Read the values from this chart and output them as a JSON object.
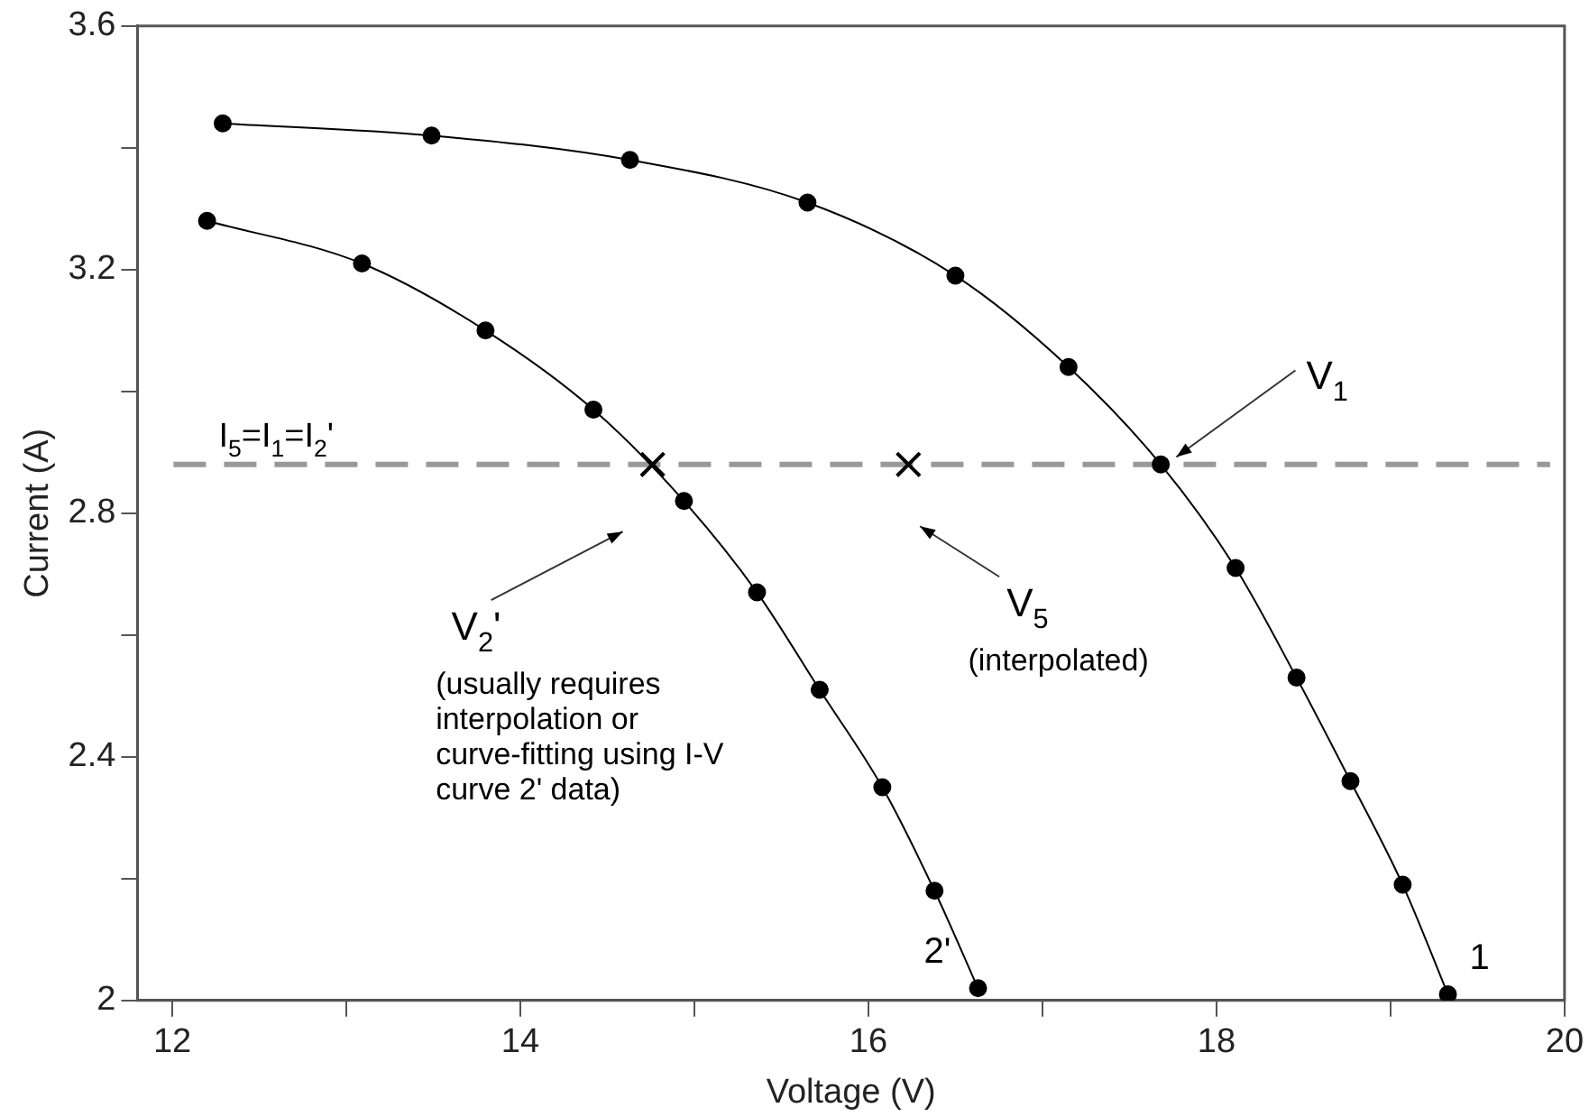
{
  "chart_data": {
    "type": "line",
    "xlabel": "Voltage (V)",
    "ylabel": "Current (A)",
    "xlim": [
      11.8,
      20
    ],
    "ylim": [
      2,
      3.6
    ],
    "xticks": [
      12,
      {
        "value": 13,
        "label": null
      },
      14,
      {
        "value": 15,
        "label": null
      },
      16,
      {
        "value": 17,
        "label": null
      },
      18,
      {
        "value": 19,
        "label": null
      },
      20
    ],
    "yticks": [
      2,
      {
        "value": 2.2,
        "label": null
      },
      2.4,
      {
        "value": 2.6,
        "label": null
      },
      2.8,
      {
        "value": 3.0,
        "label": null
      },
      3.2,
      {
        "value": 3.4,
        "label": null
      },
      3.6
    ],
    "marker": "circle",
    "series": [
      {
        "name": "1",
        "color": "#000000",
        "x": [
          12.29,
          13.49,
          14.63,
          15.65,
          16.5,
          17.15,
          17.68,
          18.11,
          18.46,
          18.77,
          19.07,
          19.33
        ],
        "values": [
          3.44,
          3.42,
          3.38,
          3.31,
          3.19,
          3.04,
          2.88,
          2.71,
          2.53,
          2.36,
          2.19,
          2.01
        ]
      },
      {
        "name": "2'",
        "color": "#000000",
        "x": [
          12.2,
          13.09,
          13.8,
          14.42,
          14.94,
          15.36,
          15.72,
          16.08,
          16.38,
          16.63
        ],
        "values": [
          3.28,
          3.21,
          3.1,
          2.97,
          2.82,
          2.67,
          2.51,
          2.35,
          2.18,
          2.02
        ]
      },
      {
        "type": "scatter",
        "marker": "cross",
        "color": "#000000",
        "x": [
          14.76,
          16.23
        ],
        "values": [
          2.88,
          2.88
        ]
      }
    ],
    "ref_lines": [
      {
        "axis": "y",
        "value": 2.88,
        "label": "I$_{5}$=I$_{1}$=I$_{2}$'",
        "color": "#999999",
        "line_style": "dashed"
      }
    ],
    "annotations": [
      "V$_{1}$",
      "V$_{2}$'",
      "(usually requires interpolation or curve-fitting using I-V curve 2' data)",
      "V$_{5}$",
      "(interpolated)"
    ]
  }
}
